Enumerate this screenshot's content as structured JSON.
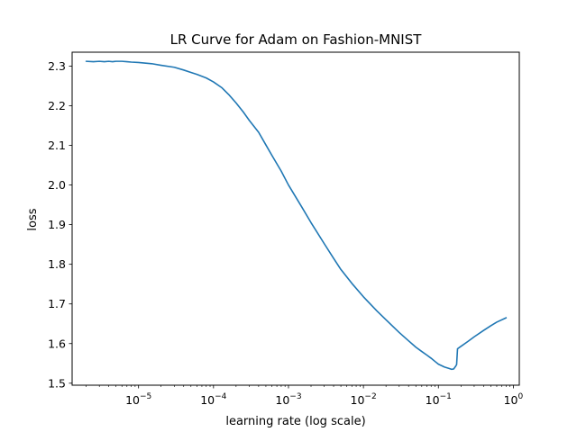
{
  "chart_data": {
    "type": "line",
    "title": "LR Curve for Adam on Fashion-MNIST",
    "xlabel": "learning rate (log scale)",
    "ylabel": "loss",
    "x_scale": "log",
    "xlim": [
      1.3e-06,
      1.2
    ],
    "ylim": [
      1.495,
      2.335
    ],
    "x_ticks": [
      {
        "base": "10",
        "exp": "−5",
        "value": 1e-05
      },
      {
        "base": "10",
        "exp": "−4",
        "value": 0.0001
      },
      {
        "base": "10",
        "exp": "−3",
        "value": 0.001
      },
      {
        "base": "10",
        "exp": "−2",
        "value": 0.01
      },
      {
        "base": "10",
        "exp": "−1",
        "value": 0.1
      },
      {
        "base": "10",
        "exp": "0",
        "value": 1
      }
    ],
    "y_ticks": [
      "1.5",
      "1.6",
      "1.7",
      "1.8",
      "1.9",
      "2.0",
      "2.1",
      "2.2",
      "2.3"
    ],
    "grid": false,
    "series_color": "#1f77b4",
    "series": [
      {
        "x": [
          2e-06,
          2.5e-06,
          3e-06,
          3.5e-06,
          4e-06,
          4.5e-06,
          5e-06,
          6e-06,
          7e-06,
          8e-06,
          1e-05,
          1.5e-05,
          2e-05,
          3e-05,
          4e-05,
          5e-05,
          6e-05,
          8e-05,
          0.0001,
          0.00013,
          0.00016,
          0.0002,
          0.00025,
          0.0003,
          0.0004,
          0.0005,
          0.0006,
          0.0008,
          0.001,
          0.0015,
          0.002,
          0.003,
          0.004,
          0.005,
          0.007,
          0.01,
          0.015,
          0.02,
          0.03,
          0.04,
          0.05,
          0.06,
          0.07,
          0.08,
          0.09,
          0.1,
          0.12,
          0.14,
          0.15,
          0.16,
          0.17,
          0.175,
          0.18,
          0.2,
          0.25,
          0.3,
          0.4,
          0.5,
          0.6,
          0.8
        ],
        "y": [
          2.312,
          2.311,
          2.312,
          2.311,
          2.312,
          2.311,
          2.312,
          2.312,
          2.311,
          2.31,
          2.309,
          2.306,
          2.302,
          2.297,
          2.29,
          2.284,
          2.279,
          2.27,
          2.26,
          2.245,
          2.228,
          2.207,
          2.184,
          2.163,
          2.133,
          2.101,
          2.075,
          2.035,
          2.0,
          1.945,
          1.905,
          1.852,
          1.815,
          1.787,
          1.752,
          1.718,
          1.683,
          1.66,
          1.628,
          1.607,
          1.591,
          1.58,
          1.571,
          1.563,
          1.555,
          1.548,
          1.541,
          1.537,
          1.535,
          1.536,
          1.543,
          1.547,
          1.587,
          1.593,
          1.606,
          1.617,
          1.633,
          1.645,
          1.654,
          1.665
        ]
      }
    ]
  }
}
